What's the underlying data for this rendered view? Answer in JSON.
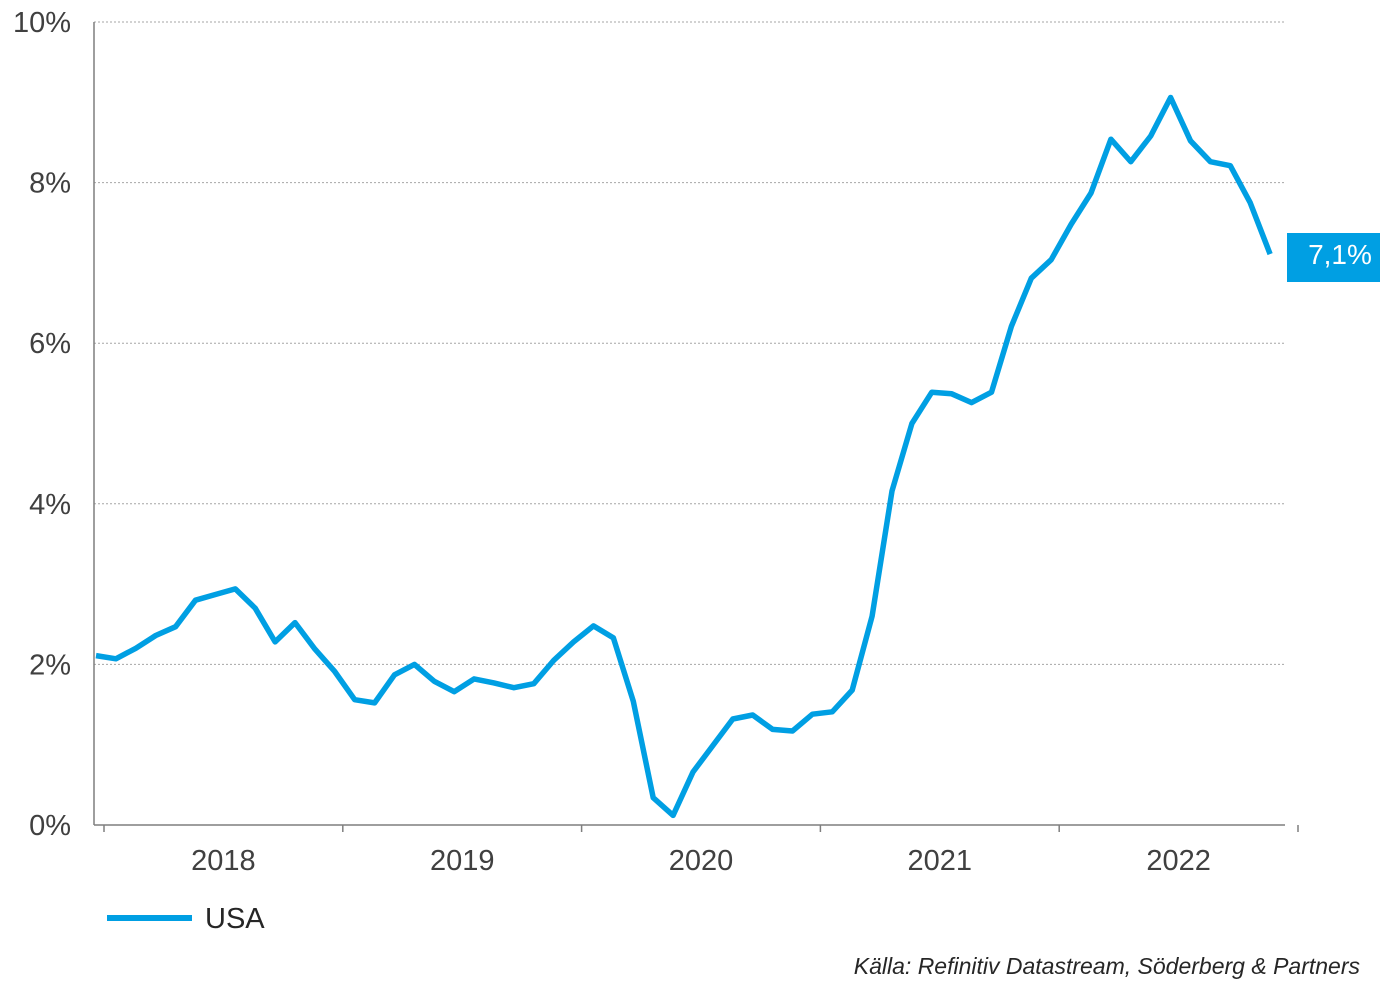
{
  "chart_data": {
    "type": "line",
    "x_unit": "month",
    "x_start": "2018-01",
    "ylim": [
      0,
      10
    ],
    "y_ticks": [
      0,
      2,
      4,
      6,
      8,
      10
    ],
    "y_tick_labels": [
      "0%",
      "2%",
      "4%",
      "6%",
      "8%",
      "10%"
    ],
    "x_tick_labels": [
      "2018",
      "2019",
      "2020",
      "2021",
      "2022"
    ],
    "grid": "horizontal dotted",
    "legend_position": "bottom-left",
    "series": [
      {
        "name": "USA",
        "color": "#009fe3",
        "values": [
          2.11,
          2.07,
          2.2,
          2.36,
          2.47,
          2.8,
          2.87,
          2.94,
          2.7,
          2.28,
          2.52,
          2.19,
          1.91,
          1.56,
          1.52,
          1.87,
          2.0,
          1.79,
          1.66,
          1.82,
          1.77,
          1.71,
          1.76,
          2.05,
          2.28,
          2.48,
          2.33,
          1.54,
          0.34,
          0.12,
          0.66,
          0.99,
          1.32,
          1.37,
          1.19,
          1.17,
          1.38,
          1.41,
          1.68,
          2.6,
          4.16,
          5.0,
          5.39,
          5.37,
          5.26,
          5.39,
          6.21,
          6.81,
          7.04,
          7.48,
          7.87,
          8.54,
          8.26,
          8.58,
          9.06,
          8.52,
          8.26,
          8.21,
          7.75,
          7.11
        ]
      }
    ],
    "last_value_label": "7,1%"
  },
  "source": "Källa: Refinitiv Datastream, Söderberg & Partners"
}
